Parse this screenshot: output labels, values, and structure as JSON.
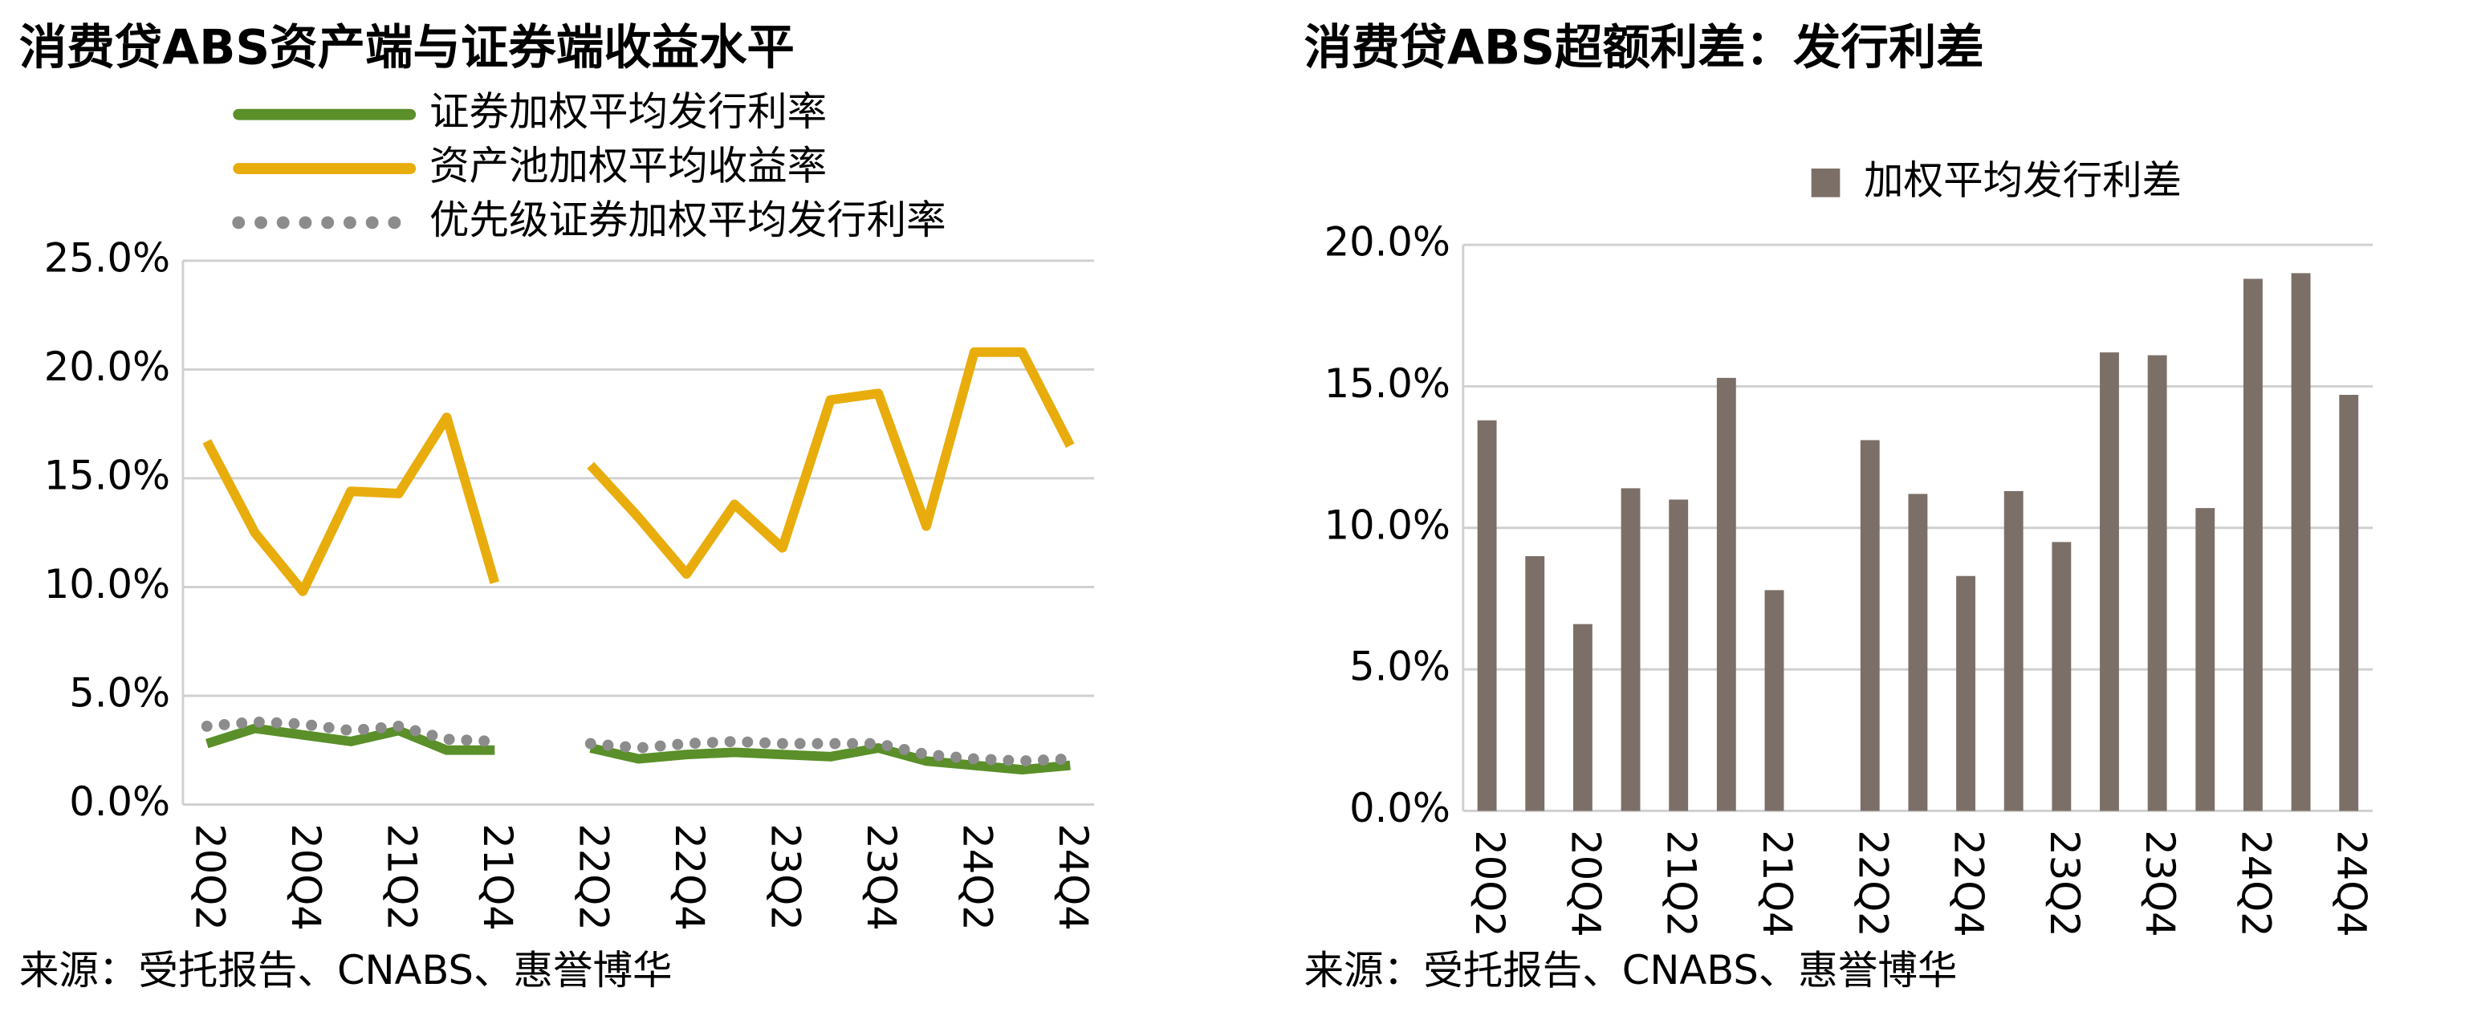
{
  "chart_data": [
    {
      "type": "line",
      "title": "消费贷ABS资产端与证券端收益水平",
      "source": "来源：受托报告、CNABS、惠誉博华",
      "categories": [
        "20Q2",
        null,
        "20Q4",
        null,
        "21Q2",
        null,
        "21Q4",
        null,
        "22Q2",
        null,
        "22Q4",
        null,
        "23Q2",
        null,
        "23Q4",
        null,
        "24Q2",
        null,
        "24Q4"
      ],
      "series": [
        {
          "name": "证券加权平均发行利率",
          "color": "#5a8f29",
          "style": "solid",
          "values": [
            2.8,
            3.5,
            3.2,
            2.9,
            3.4,
            2.5,
            2.5,
            null,
            2.6,
            2.1,
            2.3,
            2.4,
            2.3,
            2.2,
            2.6,
            2.0,
            1.8,
            1.6,
            1.8
          ]
        },
        {
          "name": "资产池加权平均收益率",
          "color": "#e8ad0c",
          "style": "solid",
          "values": [
            16.7,
            12.5,
            9.8,
            14.4,
            14.3,
            17.8,
            10.2,
            null,
            15.6,
            13.2,
            10.6,
            13.8,
            11.8,
            18.6,
            18.9,
            12.8,
            20.8,
            20.8,
            16.5
          ]
        },
        {
          "name": "优先级证券加权平均发行利率",
          "color": "#8c8c8c",
          "style": "dotted",
          "values": [
            3.6,
            3.8,
            3.7,
            3.4,
            3.6,
            3.0,
            2.9,
            null,
            2.8,
            2.6,
            2.8,
            2.9,
            2.8,
            2.8,
            2.8,
            2.3,
            2.1,
            2.0,
            2.1
          ]
        }
      ],
      "ylim": [
        0,
        25
      ],
      "yticks": [
        {
          "value": 0,
          "label": "0.0%"
        },
        {
          "value": 5,
          "label": "5.0%"
        },
        {
          "value": 10,
          "label": "10.0%"
        },
        {
          "value": 15,
          "label": "15.0%"
        },
        {
          "value": 20,
          "label": "20.0%"
        },
        {
          "value": 25,
          "label": "25.0%"
        }
      ],
      "grid": true
    },
    {
      "type": "bar",
      "title": "消费贷ABS超额利差：发行利差",
      "source": "来源：受托报告、CNABS、惠誉博华",
      "categories": [
        "20Q2",
        null,
        "20Q4",
        null,
        "21Q2",
        null,
        "21Q4",
        null,
        "22Q2",
        null,
        "22Q4",
        null,
        "23Q2",
        null,
        "23Q4",
        null,
        "24Q2",
        null,
        "24Q4"
      ],
      "series": [
        {
          "name": "加权平均发行利差",
          "color": "#7b6f68",
          "values": [
            13.8,
            9.0,
            6.6,
            11.4,
            11.0,
            15.3,
            7.8,
            null,
            13.1,
            11.2,
            8.3,
            11.3,
            9.5,
            16.2,
            16.1,
            10.7,
            18.8,
            19.0,
            14.7
          ]
        }
      ],
      "ylim": [
        0,
        20
      ],
      "yticks": [
        {
          "value": 0,
          "label": "0.0%"
        },
        {
          "value": 5,
          "label": "5.0%"
        },
        {
          "value": 10,
          "label": "10.0%"
        },
        {
          "value": 15,
          "label": "15.0%"
        },
        {
          "value": 20,
          "label": "20.0%"
        }
      ],
      "grid": true
    }
  ]
}
